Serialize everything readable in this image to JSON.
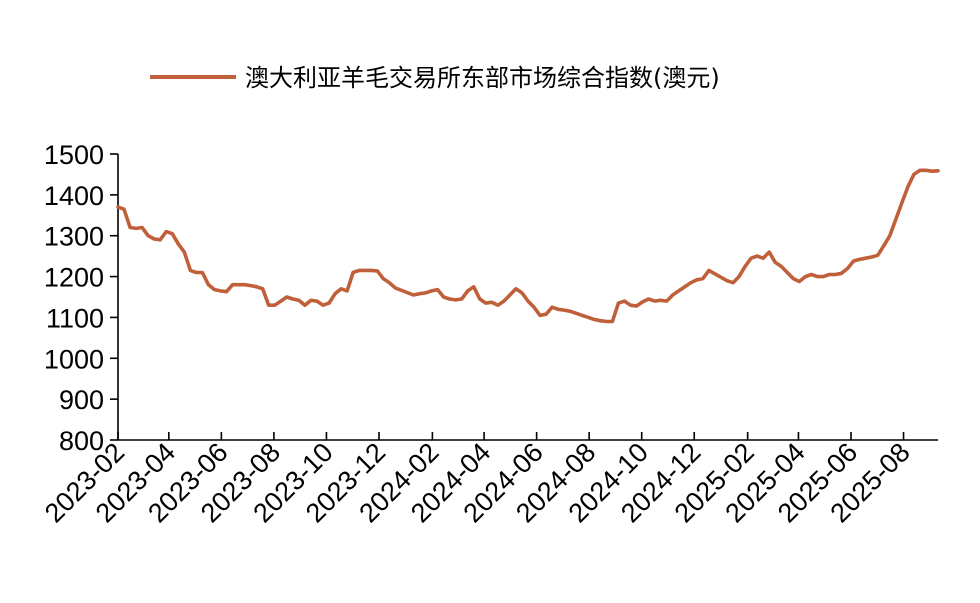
{
  "chart_data": {
    "type": "line",
    "title": "",
    "xlabel": "",
    "ylabel": "",
    "ylim": [
      800,
      1500
    ],
    "yticks": [
      800,
      900,
      1000,
      1100,
      1200,
      1300,
      1400,
      1500
    ],
    "xlim": [
      "2023-02-01",
      "2025-09-10"
    ],
    "xticks": [
      "2023-02",
      "2023-04",
      "2023-06",
      "2023-08",
      "2023-10",
      "2023-12",
      "2024-02",
      "2024-04",
      "2024-06",
      "2024-08",
      "2024-10",
      "2024-12",
      "2025-02",
      "2025-04",
      "2025-06",
      "2025-08"
    ],
    "grid": false,
    "legend_position": "top",
    "colors": {
      "line": "#C0603A",
      "axis": "#000000"
    },
    "series": [
      {
        "name": "澳大利亚羊毛交易所东部市场综合指数(澳元)",
        "x": [
          "2023-02-01",
          "2023-02-08",
          "2023-02-15",
          "2023-02-22",
          "2023-03-01",
          "2023-03-08",
          "2023-03-15",
          "2023-03-22",
          "2023-03-29",
          "2023-04-05",
          "2023-04-12",
          "2023-04-19",
          "2023-04-26",
          "2023-05-03",
          "2023-05-10",
          "2023-05-17",
          "2023-05-24",
          "2023-05-31",
          "2023-06-07",
          "2023-06-14",
          "2023-06-21",
          "2023-06-28",
          "2023-07-05",
          "2023-07-12",
          "2023-07-19",
          "2023-07-26",
          "2023-08-02",
          "2023-08-09",
          "2023-08-16",
          "2023-08-23",
          "2023-08-30",
          "2023-09-06",
          "2023-09-13",
          "2023-09-20",
          "2023-09-27",
          "2023-10-04",
          "2023-10-11",
          "2023-10-18",
          "2023-10-25",
          "2023-11-01",
          "2023-11-08",
          "2023-11-15",
          "2023-11-22",
          "2023-11-29",
          "2023-12-06",
          "2023-12-13",
          "2023-12-20",
          "2024-01-10",
          "2024-01-17",
          "2024-01-24",
          "2024-01-31",
          "2024-02-07",
          "2024-02-14",
          "2024-02-21",
          "2024-02-28",
          "2024-03-06",
          "2024-03-13",
          "2024-03-20",
          "2024-03-27",
          "2024-04-03",
          "2024-04-10",
          "2024-04-17",
          "2024-04-24",
          "2024-05-01",
          "2024-05-08",
          "2024-05-15",
          "2024-05-22",
          "2024-05-29",
          "2024-06-05",
          "2024-06-12",
          "2024-06-19",
          "2024-06-26",
          "2024-07-03",
          "2024-07-10",
          "2024-07-17",
          "2024-07-24",
          "2024-07-31",
          "2024-08-07",
          "2024-08-14",
          "2024-08-21",
          "2024-08-28",
          "2024-09-04",
          "2024-09-11",
          "2024-09-18",
          "2024-09-25",
          "2024-10-02",
          "2024-10-09",
          "2024-10-16",
          "2024-10-23",
          "2024-10-30",
          "2024-11-06",
          "2024-11-13",
          "2024-11-20",
          "2024-11-27",
          "2024-12-04",
          "2024-12-11",
          "2024-12-18",
          "2025-01-08",
          "2025-01-15",
          "2025-01-22",
          "2025-01-29",
          "2025-02-05",
          "2025-02-12",
          "2025-02-19",
          "2025-02-26",
          "2025-03-05",
          "2025-03-12",
          "2025-03-19",
          "2025-03-26",
          "2025-04-02",
          "2025-04-09",
          "2025-04-16",
          "2025-04-23",
          "2025-04-30",
          "2025-05-07",
          "2025-05-14",
          "2025-05-21",
          "2025-05-28",
          "2025-06-04",
          "2025-06-11",
          "2025-06-18",
          "2025-06-25",
          "2025-07-02",
          "2025-07-09",
          "2025-07-16",
          "2025-07-23",
          "2025-07-30",
          "2025-08-06",
          "2025-08-13",
          "2025-08-20",
          "2025-08-27",
          "2025-09-03",
          "2025-09-10"
        ],
        "values": [
          1370,
          1365,
          1320,
          1318,
          1320,
          1300,
          1292,
          1290,
          1310,
          1305,
          1280,
          1260,
          1215,
          1210,
          1210,
          1180,
          1168,
          1165,
          1163,
          1180,
          1180,
          1180,
          1178,
          1175,
          1170,
          1130,
          1130,
          1140,
          1150,
          1145,
          1142,
          1130,
          1142,
          1140,
          1130,
          1135,
          1158,
          1170,
          1165,
          1210,
          1215,
          1215,
          1215,
          1214,
          1195,
          1185,
          1172,
          1155,
          1158,
          1160,
          1165,
          1168,
          1150,
          1145,
          1143,
          1145,
          1165,
          1175,
          1145,
          1135,
          1137,
          1130,
          1140,
          1155,
          1170,
          1160,
          1140,
          1125,
          1105,
          1108,
          1125,
          1120,
          1118,
          1115,
          1110,
          1105,
          1100,
          1095,
          1092,
          1090,
          1090,
          1135,
          1140,
          1130,
          1128,
          1138,
          1145,
          1140,
          1142,
          1140,
          1155,
          1165,
          1175,
          1185,
          1192,
          1195,
          1215,
          1190,
          1185,
          1200,
          1225,
          1245,
          1250,
          1245,
          1260,
          1235,
          1225,
          1210,
          1195,
          1188,
          1200,
          1205,
          1200,
          1200,
          1205,
          1205,
          1208,
          1220,
          1238,
          1242,
          1245,
          1248,
          1252,
          1275,
          1300,
          1340,
          1380,
          1420,
          1450,
          1460,
          1460,
          1458,
          1459
        ],
        "values_note_removed": null
      }
    ]
  }
}
